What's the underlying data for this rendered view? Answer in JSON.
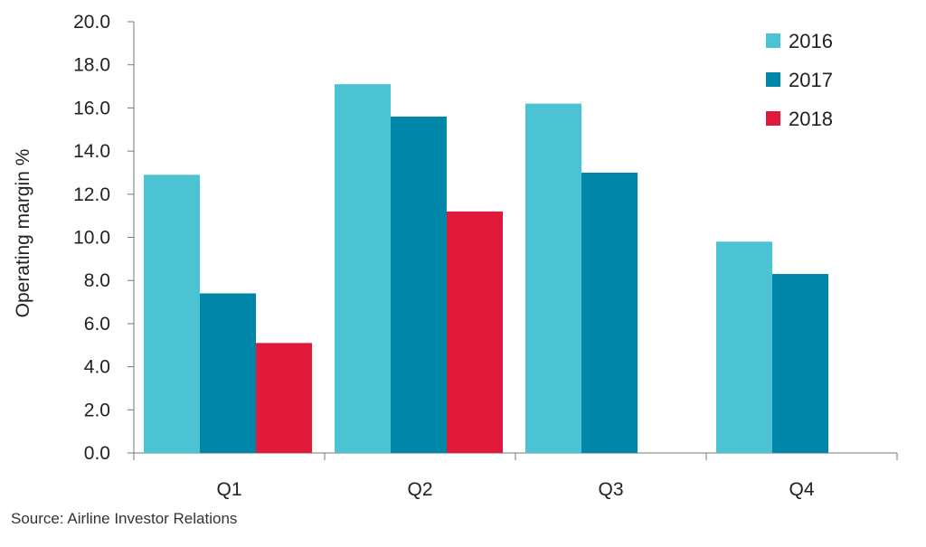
{
  "chart_data": {
    "type": "bar",
    "categories": [
      "Q1",
      "Q2",
      "Q3",
      "Q4"
    ],
    "series": [
      {
        "name": "2016",
        "values": [
          12.9,
          17.1,
          16.2,
          9.8
        ],
        "color": "#4bc3d3"
      },
      {
        "name": "2017",
        "values": [
          7.4,
          15.6,
          13.0,
          8.3
        ],
        "color": "#0086a8"
      },
      {
        "name": "2018",
        "values": [
          5.1,
          11.2,
          null,
          null
        ],
        "color": "#e0193a"
      }
    ],
    "title": "",
    "xlabel": "",
    "ylabel": "Operating margin %",
    "ylim": [
      0,
      20
    ],
    "yticks": [
      "0.0",
      "2.0",
      "4.0",
      "6.0",
      "8.0",
      "10.0",
      "12.0",
      "14.0",
      "16.0",
      "18.0",
      "20.0"
    ],
    "grid": false,
    "legend": "top-right"
  },
  "source": "Source: Airline Investor Relations"
}
